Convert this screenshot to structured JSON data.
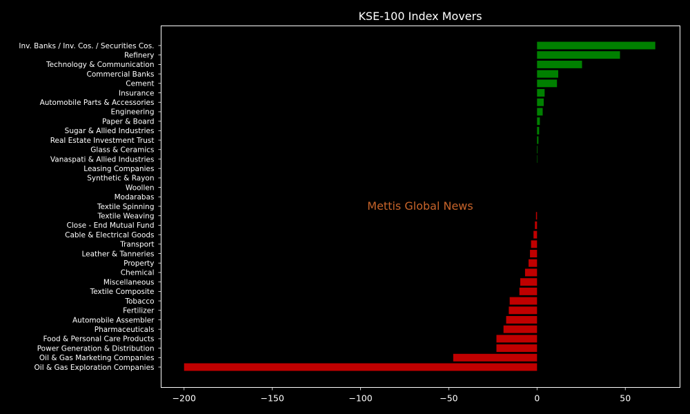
{
  "chart_data": {
    "type": "bar",
    "orientation": "horizontal",
    "title": "KSE-100 Index Movers",
    "watermark": "Mettis Global News",
    "xlabel": "",
    "ylabel": "",
    "xlim": [
      -213,
      81
    ],
    "x_ticks": [
      -200,
      -150,
      -100,
      -50,
      0,
      50
    ],
    "grid": false,
    "categories": [
      "Inv. Banks / Inv. Cos. / Securities Cos.",
      "Refinery",
      "Technology & Communication",
      "Commercial Banks",
      "Cement",
      "Insurance",
      "Automobile Parts & Accessories",
      "Engineering",
      "Paper & Board",
      "Sugar & Allied Industries",
      "Real Estate Investment Trust",
      "Glass & Ceramics",
      "Vanaspati & Allied Industries",
      "Leasing Companies",
      "Synthetic & Rayon",
      "Woollen",
      "Modarabas",
      "Textile Spinning",
      "Textile Weaving",
      "Close - End Mutual Fund",
      "Cable & Electrical Goods",
      "Transport",
      "Leather & Tanneries",
      "Property",
      "Chemical",
      "Miscellaneous",
      "Textile Composite",
      "Tobacco",
      "Fertilizer",
      "Automobile Assembler",
      "Pharmaceuticals",
      "Food & Personal Care Products",
      "Power Generation & Distribution",
      "Oil & Gas Marketing Companies",
      "Oil & Gas Exploration Companies"
    ],
    "values": [
      67,
      47,
      25.5,
      12,
      11.3,
      4.3,
      3.8,
      3.2,
      1.6,
      1.2,
      0.8,
      0.3,
      0.2,
      0,
      0,
      0,
      0,
      0,
      -0.6,
      -1.2,
      -2,
      -3.4,
      -4,
      -4.8,
      -6.8,
      -9.5,
      -10,
      -15.5,
      -16,
      -17.5,
      -19,
      -23,
      -23,
      -47.5,
      -200
    ],
    "colors": {
      "positive": "#008000",
      "negative": "#c00000",
      "background": "#000000",
      "text": "#ffffff",
      "watermark": "#c8642a"
    }
  }
}
